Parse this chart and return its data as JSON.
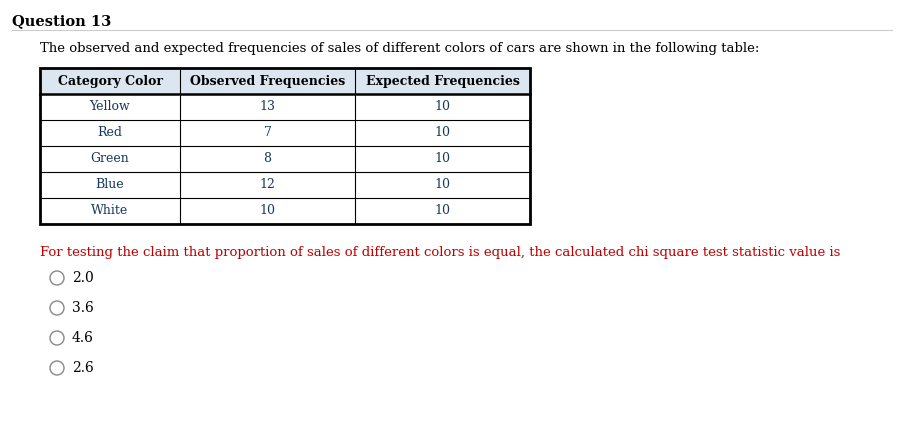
{
  "title": "Question 13",
  "background_color": "#ffffff",
  "intro_text": "The observed and expected frequencies of sales of different colors of cars are shown in the following table:",
  "table_headers": [
    "Category Color",
    "Observed Frequencies",
    "Expected Frequencies"
  ],
  "table_rows": [
    [
      "Yellow",
      "13",
      "10"
    ],
    [
      "Red",
      "7",
      "10"
    ],
    [
      "Green",
      "8",
      "10"
    ],
    [
      "Blue",
      "12",
      "10"
    ],
    [
      "White",
      "10",
      "10"
    ]
  ],
  "row_colors": [
    "#ffffff",
    "#ffffff",
    "#ffffff",
    "#ffffff",
    "#ffffff"
  ],
  "question_text": "For testing the claim that proportion of sales of different colors is equal, the calculated chi square test statistic value is",
  "options": [
    "2.0",
    "3.6",
    "4.6",
    "2.6"
  ],
  "title_color": "#000000",
  "intro_color": "#000000",
  "question_color": "#c00000",
  "header_color": "#000000",
  "cell_text_color": "#17375e",
  "option_color": "#000000",
  "header_bg": "#dce6f1",
  "title_fontsize": 10.5,
  "intro_fontsize": 9.5,
  "header_fontsize": 9,
  "cell_fontsize": 9,
  "question_fontsize": 9.5,
  "option_fontsize": 10
}
